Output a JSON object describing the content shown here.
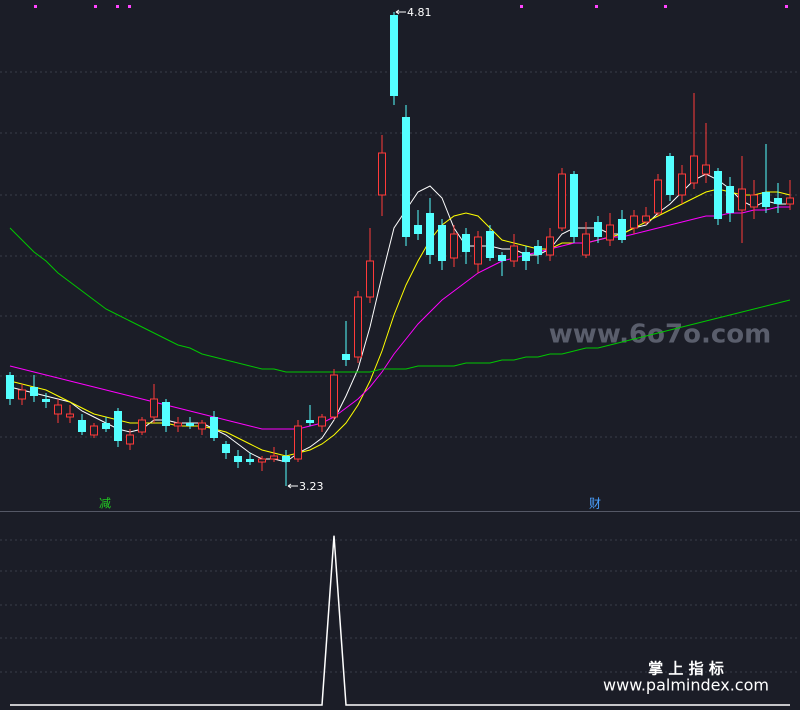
{
  "chart_data": [
    {
      "type": "candlestick",
      "up_color": "#ff3a3a",
      "down_color": "#54ffff",
      "ylim": [
        3.15,
        4.85
      ],
      "open": [
        3.6,
        3.52,
        3.56,
        3.52,
        3.47,
        3.46,
        3.45,
        3.4,
        3.44,
        3.48,
        3.37,
        3.41,
        3.46,
        3.51,
        3.43,
        3.44,
        3.42,
        3.46,
        3.37,
        3.33,
        3.32,
        3.31,
        3.32,
        3.33,
        3.32,
        3.45,
        3.43,
        3.46,
        3.67,
        3.66,
        3.86,
        4.2,
        4.8,
        4.46,
        4.1,
        4.14,
        4.1,
        3.99,
        4.07,
        3.97,
        4.08,
        4.0,
        3.98,
        4.01,
        4.03,
        4.0,
        4.09,
        4.27,
        4.0,
        4.11,
        4.05,
        4.12,
        4.09,
        4.11,
        4.14,
        4.33,
        4.2,
        4.24,
        4.27,
        4.28,
        4.23,
        4.15,
        4.16,
        4.21,
        4.19,
        4.17
      ],
      "high": [
        3.61,
        3.57,
        3.6,
        3.54,
        3.52,
        3.5,
        3.47,
        3.44,
        3.46,
        3.49,
        3.42,
        3.46,
        3.57,
        3.52,
        3.46,
        3.46,
        3.45,
        3.48,
        3.38,
        3.35,
        3.34,
        3.33,
        3.36,
        3.35,
        3.45,
        3.5,
        3.47,
        3.62,
        3.78,
        3.88,
        4.09,
        4.4,
        4.81,
        4.5,
        4.15,
        4.19,
        4.12,
        4.1,
        4.09,
        4.08,
        4.1,
        4.01,
        4.07,
        4.03,
        4.05,
        4.09,
        4.29,
        4.28,
        4.11,
        4.13,
        4.14,
        4.15,
        4.15,
        4.16,
        4.27,
        4.34,
        4.3,
        4.54,
        4.44,
        4.29,
        4.26,
        4.33,
        4.25,
        4.37,
        4.24,
        4.25
      ],
      "low": [
        3.5,
        3.5,
        3.51,
        3.49,
        3.44,
        3.44,
        3.4,
        3.39,
        3.41,
        3.36,
        3.35,
        3.4,
        3.44,
        3.41,
        3.41,
        3.42,
        3.4,
        3.38,
        3.32,
        3.29,
        3.3,
        3.28,
        3.31,
        3.23,
        3.31,
        3.43,
        3.41,
        3.45,
        3.63,
        3.64,
        3.84,
        4.13,
        4.5,
        4.03,
        4.05,
        3.97,
        3.95,
        3.96,
        3.97,
        3.94,
        3.98,
        3.93,
        3.96,
        3.95,
        3.97,
        3.98,
        4.08,
        4.04,
        3.99,
        4.04,
        4.03,
        4.04,
        4.07,
        4.1,
        4.13,
        4.18,
        4.17,
        4.22,
        4.24,
        4.1,
        4.11,
        4.04,
        4.12,
        4.14,
        4.14,
        4.15
      ],
      "close": [
        3.52,
        3.55,
        3.53,
        3.51,
        3.5,
        3.47,
        3.41,
        3.43,
        3.42,
        3.38,
        3.4,
        3.45,
        3.52,
        3.43,
        3.44,
        3.43,
        3.44,
        3.39,
        3.34,
        3.31,
        3.31,
        3.32,
        3.33,
        3.31,
        3.43,
        3.44,
        3.46,
        3.6,
        3.65,
        3.86,
        3.98,
        4.34,
        4.53,
        4.06,
        4.07,
        4.0,
        3.98,
        4.07,
        4.01,
        4.06,
        3.99,
        3.98,
        4.03,
        3.98,
        4.0,
        4.06,
        4.27,
        4.06,
        4.07,
        4.06,
        4.1,
        4.05,
        4.13,
        4.13,
        4.25,
        4.2,
        4.27,
        4.33,
        4.3,
        4.12,
        4.14,
        4.22,
        4.2,
        4.16,
        4.17,
        4.19
      ],
      "series": [
        {
          "color": "#ffffff",
          "values": [
            3.56,
            3.55,
            3.54,
            3.53,
            3.52,
            3.51,
            3.48,
            3.46,
            3.44,
            3.42,
            3.41,
            3.42,
            3.45,
            3.45,
            3.44,
            3.44,
            3.44,
            3.42,
            3.4,
            3.37,
            3.34,
            3.32,
            3.32,
            3.31,
            3.34,
            3.36,
            3.39,
            3.45,
            3.53,
            3.62,
            3.76,
            3.93,
            4.09,
            4.15,
            4.21,
            4.23,
            4.19,
            4.09,
            4.03,
            4.03,
            4.03,
            4.02,
            4.02,
            4.0,
            4.0,
            4.02,
            4.07,
            4.09,
            4.09,
            4.09,
            4.07,
            4.07,
            4.09,
            4.1,
            4.14,
            4.17,
            4.21,
            4.25,
            4.27,
            4.25,
            4.22,
            4.18,
            4.16,
            4.18,
            4.17,
            4.17
          ]
        },
        {
          "color": "#ffff00",
          "values": [
            3.58,
            3.57,
            3.56,
            3.55,
            3.53,
            3.51,
            3.49,
            3.47,
            3.46,
            3.45,
            3.44,
            3.44,
            3.44,
            3.44,
            3.43,
            3.43,
            3.43,
            3.42,
            3.41,
            3.39,
            3.37,
            3.35,
            3.34,
            3.33,
            3.34,
            3.35,
            3.37,
            3.4,
            3.44,
            3.5,
            3.58,
            3.68,
            3.8,
            3.9,
            3.98,
            4.05,
            4.1,
            4.13,
            4.14,
            4.13,
            4.09,
            4.05,
            4.04,
            4.03,
            4.02,
            4.02,
            4.04,
            4.04,
            4.04,
            4.05,
            4.06,
            4.07,
            4.09,
            4.11,
            4.13,
            4.15,
            4.17,
            4.19,
            4.21,
            4.22,
            4.21,
            4.2,
            4.2,
            4.21,
            4.21,
            4.2
          ]
        },
        {
          "color": "#ff00ff",
          "values": [
            3.63,
            3.62,
            3.61,
            3.6,
            3.59,
            3.58,
            3.57,
            3.56,
            3.55,
            3.54,
            3.53,
            3.52,
            3.51,
            3.5,
            3.49,
            3.48,
            3.47,
            3.46,
            3.45,
            3.44,
            3.43,
            3.42,
            3.42,
            3.42,
            3.42,
            3.43,
            3.44,
            3.46,
            3.49,
            3.52,
            3.56,
            3.61,
            3.67,
            3.72,
            3.77,
            3.81,
            3.85,
            3.88,
            3.91,
            3.94,
            3.96,
            3.98,
            3.99,
            4.0,
            4.01,
            4.02,
            4.03,
            4.04,
            4.04,
            4.05,
            4.06,
            4.06,
            4.07,
            4.08,
            4.09,
            4.1,
            4.11,
            4.12,
            4.13,
            4.13,
            4.14,
            4.14,
            4.15,
            4.15,
            4.16,
            4.16
          ]
        },
        {
          "color": "#00c800",
          "values": [
            4.09,
            4.05,
            4.01,
            3.98,
            3.94,
            3.91,
            3.88,
            3.85,
            3.82,
            3.8,
            3.78,
            3.76,
            3.74,
            3.72,
            3.7,
            3.69,
            3.67,
            3.66,
            3.65,
            3.64,
            3.63,
            3.62,
            3.62,
            3.61,
            3.61,
            3.61,
            3.61,
            3.61,
            3.61,
            3.61,
            3.61,
            3.62,
            3.62,
            3.62,
            3.63,
            3.63,
            3.63,
            3.63,
            3.64,
            3.64,
            3.64,
            3.65,
            3.65,
            3.66,
            3.66,
            3.67,
            3.67,
            3.68,
            3.69,
            3.69,
            3.7,
            3.71,
            3.72,
            3.73,
            3.74,
            3.75,
            3.76,
            3.77,
            3.78,
            3.79,
            3.8,
            3.81,
            3.82,
            3.83,
            3.84,
            3.85
          ]
        }
      ],
      "signals": [
        {
          "text": "减",
          "color": "#22c922"
        },
        {
          "text": "财",
          "color": "#4aa0ff"
        }
      ]
    },
    {
      "type": "line",
      "color": "#ffffff",
      "ylim": [
        0,
        1.14
      ],
      "values": [
        0,
        0,
        0,
        0,
        0,
        0,
        0,
        0,
        0,
        0,
        0,
        0,
        0,
        0,
        0,
        0,
        0,
        0,
        0,
        0,
        0,
        0,
        0,
        0,
        0,
        0,
        0,
        1,
        0,
        0,
        0,
        0,
        0,
        0,
        0,
        0,
        0,
        0,
        0,
        0,
        0,
        0,
        0,
        0,
        0,
        0,
        0,
        0,
        0,
        0,
        0,
        0,
        0,
        0,
        0,
        0,
        0,
        0,
        0,
        0,
        0,
        0,
        0,
        0,
        0,
        0
      ]
    }
  ],
  "watermark": "www.6o7o.com",
  "footer": {
    "title": "掌 上 指 标",
    "url": "www.palmindex.com"
  }
}
